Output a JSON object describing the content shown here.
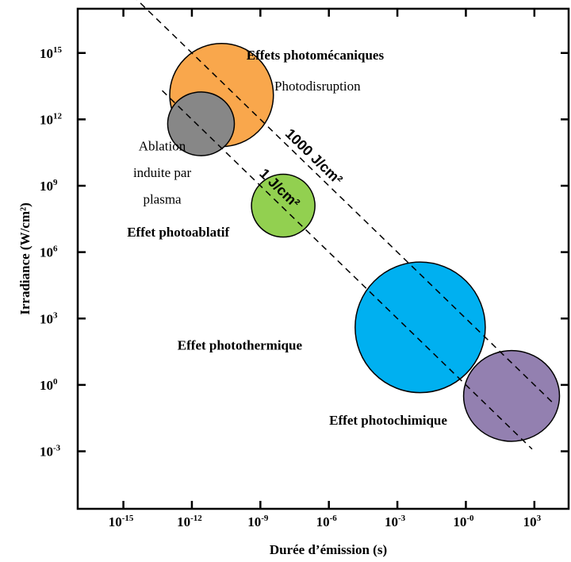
{
  "chart_data": {
    "type": "scatter",
    "title": "",
    "xlabel": "Durée d’émission (s)",
    "ylabel": "Irradiance (W/cm²)",
    "x_scale": "log",
    "y_scale": "log",
    "xlim_exp": [
      -17,
      4.5
    ],
    "ylim_exp": [
      -5.6,
      17
    ],
    "x_ticks": [
      {
        "exp": -15,
        "base": "10",
        "sup": "-15"
      },
      {
        "exp": -12,
        "base": "10",
        "sup": "-12"
      },
      {
        "exp": -9,
        "base": "10",
        "sup": "-9"
      },
      {
        "exp": -6,
        "base": "10",
        "sup": "-6"
      },
      {
        "exp": -3,
        "base": "10",
        "sup": "-3"
      },
      {
        "exp": 0,
        "base": "10",
        "sup": "-0"
      },
      {
        "exp": 3,
        "base": "10",
        "sup": "3"
      }
    ],
    "y_ticks": [
      {
        "exp": 15,
        "base": "10",
        "sup": "15"
      },
      {
        "exp": 12,
        "base": "10",
        "sup": "12"
      },
      {
        "exp": 9,
        "base": "10",
        "sup": "9"
      },
      {
        "exp": 6,
        "base": "10",
        "sup": "6"
      },
      {
        "exp": 3,
        "base": "10",
        "sup": "3"
      },
      {
        "exp": 0,
        "base": "10",
        "sup": "0"
      },
      {
        "exp": -3,
        "base": "10",
        "sup": "-3"
      }
    ],
    "regions": [
      {
        "label": "Photodisruption",
        "x_exp": -10.7,
        "y_exp": 13.1,
        "rx_dec": 2.27,
        "ry_dec": 2.33,
        "color": "#F9A74C"
      },
      {
        "label": "Ablation induite par plasma",
        "x_exp": -11.6,
        "y_exp": 11.8,
        "rx_dec": 1.46,
        "ry_dec": 1.44,
        "color": "#878787"
      },
      {
        "label": "Effet photoablatif",
        "x_exp": -8.0,
        "y_exp": 8.1,
        "rx_dec": 1.39,
        "ry_dec": 1.42,
        "color": "#92D050"
      },
      {
        "label": "Effet photothermique",
        "x_exp": -2.0,
        "y_exp": 2.6,
        "rx_dec": 2.85,
        "ry_dec": 2.95,
        "color": "#00B0F0"
      },
      {
        "label": "Effet photochimique",
        "x_exp": 2.0,
        "y_exp": -0.5,
        "rx_dec": 2.1,
        "ry_dec": 2.05,
        "color": "#9380B0"
      }
    ],
    "reference_lines": [
      {
        "label": "1000 J/cm²",
        "fluence_exp": 3
      },
      {
        "label": "1 J/cm²",
        "fluence_exp": 0
      }
    ],
    "annotations": [
      {
        "text": "Effets photomécaniques",
        "style": "bold",
        "x_exp": -6.6,
        "y_exp": 14.7,
        "anchor": "middle"
      },
      {
        "text": "Photodisruption",
        "style": "normal",
        "x_exp": -6.5,
        "y_exp": 13.3,
        "anchor": "middle"
      },
      {
        "text": "Ablation",
        "style": "normal",
        "x_exp": -13.3,
        "y_exp": 10.6,
        "anchor": "middle"
      },
      {
        "text": "induite par",
        "style": "normal",
        "x_exp": -13.3,
        "y_exp": 9.4,
        "anchor": "middle"
      },
      {
        "text": "plasma",
        "style": "normal",
        "x_exp": -13.3,
        "y_exp": 8.2,
        "anchor": "middle"
      },
      {
        "text": "Effet photoablatif",
        "style": "bold",
        "x_exp": -12.6,
        "y_exp": 6.7,
        "anchor": "middle"
      },
      {
        "text": "Effet photothermique",
        "style": "bold",
        "x_exp": -9.9,
        "y_exp": 1.6,
        "anchor": "middle"
      },
      {
        "text": "Effet photochimique",
        "style": "bold",
        "x_exp": -3.4,
        "y_exp": -1.8,
        "anchor": "middle"
      }
    ],
    "grid": false,
    "legend": "none"
  }
}
